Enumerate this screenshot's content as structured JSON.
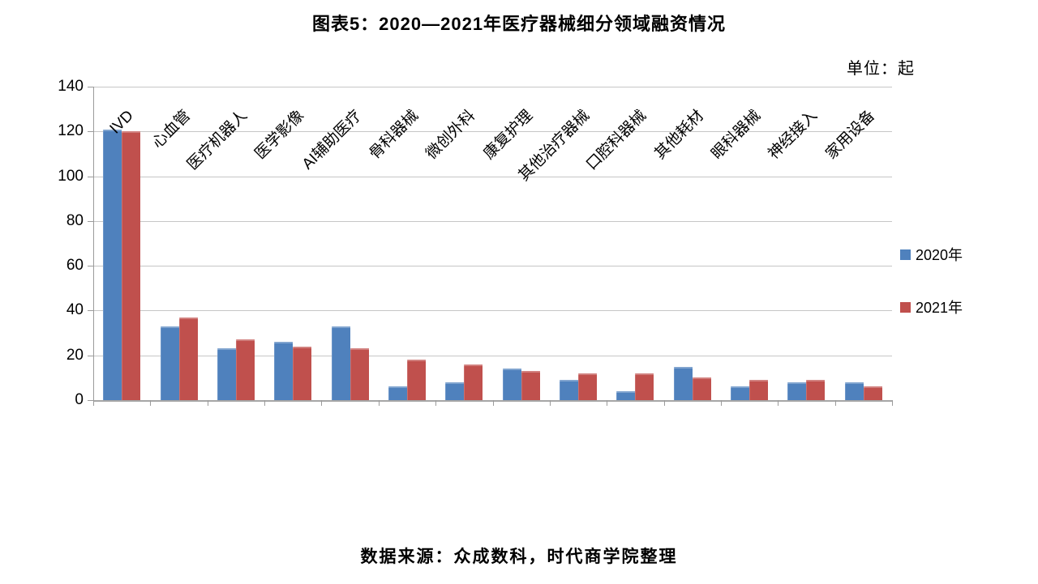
{
  "header": {
    "title": "图表5：2020—2021年医疗器械细分领域融资情况",
    "unit_label": "单位：起"
  },
  "footer": {
    "source": "数据来源：众成数科，时代商学院整理"
  },
  "chart_data": {
    "type": "bar",
    "title": "图表5：2020—2021年医疗器械细分领域融资情况",
    "unit": "起",
    "categories": [
      "IVD",
      "心血管",
      "医疗机器人",
      "医学影像",
      "AI辅助医疗",
      "骨科器械",
      "微创外科",
      "康复护理",
      "其他治疗器械",
      "口腔科器械",
      "其他耗材",
      "眼科器械",
      "神经接入",
      "家用设备"
    ],
    "series": [
      {
        "name": "2020年",
        "color": "#4F81BD",
        "values": [
          121,
          33,
          23,
          26,
          33,
          6,
          8,
          14,
          9,
          4,
          15,
          6,
          8,
          8
        ]
      },
      {
        "name": "2021年",
        "color": "#C0504D",
        "values": [
          120,
          37,
          27,
          24,
          23,
          18,
          16,
          13,
          12,
          12,
          10,
          9,
          9,
          6
        ]
      }
    ],
    "xlabel": "",
    "ylabel": "",
    "ylim": [
      0,
      140
    ],
    "yticks": [
      0,
      20,
      40,
      60,
      80,
      100,
      120,
      140
    ],
    "grid": true,
    "legend_position": "right",
    "colors": {
      "gridline": "#C6C6C6",
      "axis": "#9B9B9B",
      "text": "#000000"
    }
  }
}
